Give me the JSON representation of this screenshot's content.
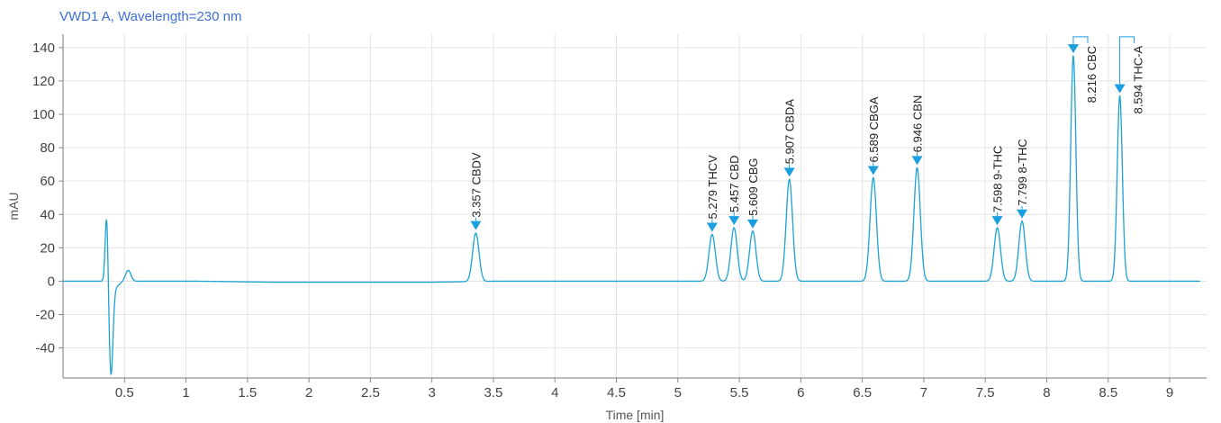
{
  "chart_data": {
    "type": "line",
    "title": "VWD1 A, Wavelength=230 nm",
    "xlabel": "Time [min]",
    "ylabel": "mAU",
    "xlim": [
      0,
      9.3
    ],
    "ylim": [
      -58,
      148
    ],
    "grid": true,
    "line_color": "#1aa3d4",
    "marker_color": "#1a9fe0",
    "x_ticks": [
      0.5,
      1,
      1.5,
      2,
      2.5,
      3,
      3.5,
      4,
      4.5,
      5,
      5.5,
      6,
      6.5,
      7,
      7.5,
      8,
      8.5,
      9
    ],
    "x_tick_labels": [
      "0.5",
      "1",
      "1.5",
      "2",
      "2.5",
      "3",
      "3.5",
      "4",
      "4.5",
      "5",
      "5.5",
      "6",
      "6.5",
      "7",
      "7.5",
      "8",
      "8.5",
      "9"
    ],
    "y_ticks": [
      -40,
      -20,
      0,
      20,
      40,
      60,
      80,
      100,
      120,
      140
    ],
    "y_tick_labels": [
      "-40",
      "-20",
      "0",
      "20",
      "40",
      "60",
      "80",
      "100",
      "120",
      "140"
    ],
    "peaks": [
      {
        "rt": 3.357,
        "height": 29,
        "label": "3.357 CBDV"
      },
      {
        "rt": 5.279,
        "height": 28,
        "label": "5.279 THCV"
      },
      {
        "rt": 5.457,
        "height": 32,
        "label": "5.457 CBD"
      },
      {
        "rt": 5.609,
        "height": 30,
        "label": "5.609 CBG"
      },
      {
        "rt": 5.907,
        "height": 61,
        "label": "5.907 CBDA"
      },
      {
        "rt": 6.589,
        "height": 62,
        "label": "6.589 CBGA"
      },
      {
        "rt": 6.946,
        "height": 68,
        "label": "6.946 CBN"
      },
      {
        "rt": 7.598,
        "height": 32,
        "label": "7.598 9-THC"
      },
      {
        "rt": 7.799,
        "height": 36,
        "label": "7.799 8-THC"
      },
      {
        "rt": 8.216,
        "height": 135,
        "label": "8.216 CBC"
      },
      {
        "rt": 8.594,
        "height": 111,
        "label": "8.594 THC-A"
      }
    ]
  }
}
